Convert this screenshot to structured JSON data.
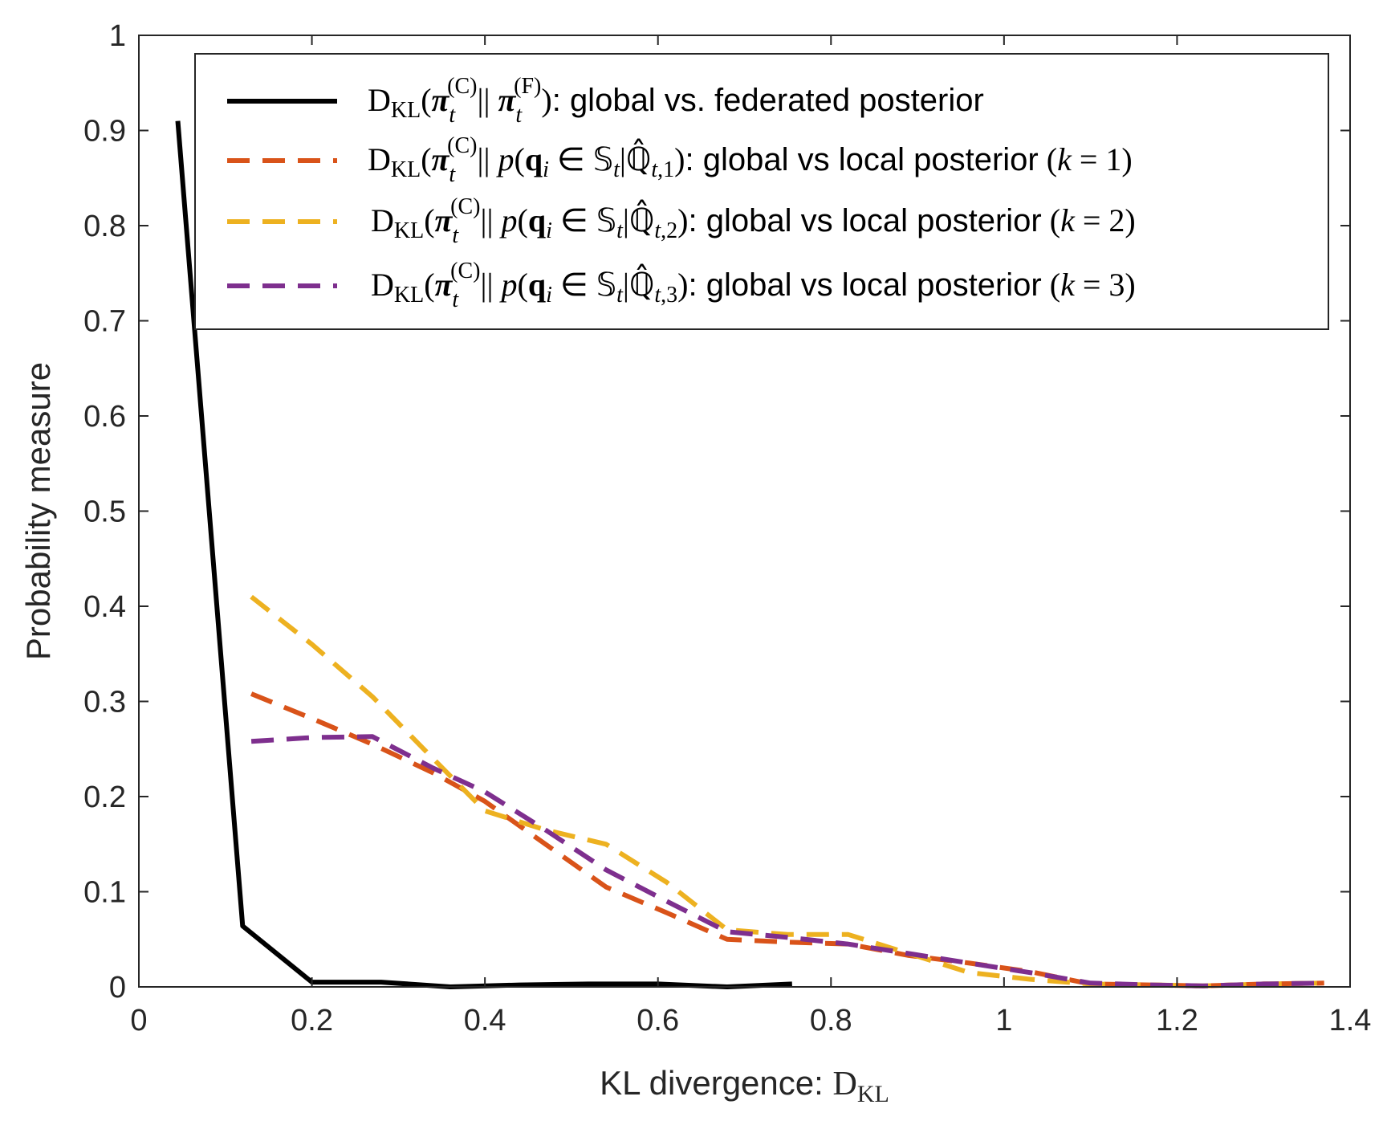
{
  "chart_data": {
    "type": "line",
    "xlabel": "KL divergence: D_KL",
    "xlabel_parts": {
      "text": "KL divergence: ",
      "d": "D",
      "sub": "KL"
    },
    "ylabel": "Probability measure",
    "xlim": [
      0,
      1.4
    ],
    "ylim": [
      0,
      1
    ],
    "xticks": [
      "0",
      "0.2",
      "0.4",
      "0.6",
      "0.8",
      "1",
      "1.2",
      "1.4"
    ],
    "yticks": [
      "0",
      "0.1",
      "0.2",
      "0.3",
      "0.4",
      "0.5",
      "0.6",
      "0.7",
      "0.8",
      "0.9",
      "1"
    ],
    "grid": false,
    "legend_position": "top-right",
    "series": [
      {
        "name": "D_KL(π_t^(C) || π_t^(F)): global vs. federated posterior",
        "legend": {
          "suffix": "global vs. federated posterior"
        },
        "color": "#000000",
        "style": "solid",
        "x": [
          0.045,
          0.12,
          0.2,
          0.28,
          0.36,
          0.44,
          0.52,
          0.6,
          0.68,
          0.755
        ],
        "y": [
          0.91,
          0.064,
          0.005,
          0.005,
          0.0,
          0.002,
          0.003,
          0.003,
          0.0,
          0.003
        ]
      },
      {
        "name": "D_KL(π_t^(C) || p(q_i ∈ S_t | Q̂_t,1)): global vs local posterior (k = 1)",
        "legend": {
          "suffix": "global vs local posterior",
          "k": "1"
        },
        "color": "#D95319",
        "style": "dashed",
        "x": [
          0.13,
          0.2,
          0.27,
          0.34,
          0.4,
          0.47,
          0.54,
          0.61,
          0.68,
          0.75,
          0.82,
          0.89,
          0.96,
          1.03,
          1.1,
          1.17,
          1.23,
          1.3,
          1.37
        ],
        "y": [
          0.308,
          0.282,
          0.255,
          0.225,
          0.195,
          0.15,
          0.105,
          0.078,
          0.05,
          0.047,
          0.045,
          0.033,
          0.025,
          0.016,
          0.003,
          0.002,
          0.001,
          0.003,
          0.004
        ]
      },
      {
        "name": "D_KL(π_t^(C) || p(q_i ∈ S_t | Q̂_t,2)): global vs local posterior (k = 2)",
        "legend": {
          "suffix": "global vs local posterior",
          "k": "2"
        },
        "color": "#EDB120",
        "style": "dashed",
        "x": [
          0.13,
          0.2,
          0.27,
          0.34,
          0.4,
          0.47,
          0.54,
          0.61,
          0.68,
          0.75,
          0.82,
          0.89,
          0.96,
          1.03,
          1.1,
          1.17,
          1.23,
          1.3,
          1.37
        ],
        "y": [
          0.41,
          0.36,
          0.305,
          0.24,
          0.185,
          0.165,
          0.15,
          0.11,
          0.06,
          0.055,
          0.055,
          0.035,
          0.015,
          0.008,
          0.003,
          0.002,
          0.001,
          0.003,
          0.004
        ]
      },
      {
        "name": "D_KL(π_t^(C) || p(q_i ∈ S_t | Q̂_t,3)): global vs local posterior (k = 3)",
        "legend": {
          "suffix": "global vs local posterior",
          "k": "3"
        },
        "color": "#7E2F8E",
        "style": "dashed",
        "x": [
          0.13,
          0.2,
          0.27,
          0.34,
          0.4,
          0.47,
          0.54,
          0.61,
          0.68,
          0.75,
          0.82,
          0.89,
          0.96,
          1.03,
          1.1,
          1.17,
          1.23,
          1.3,
          1.37
        ],
        "y": [
          0.258,
          0.262,
          0.263,
          0.23,
          0.205,
          0.165,
          0.123,
          0.09,
          0.058,
          0.052,
          0.045,
          0.035,
          0.025,
          0.015,
          0.004,
          0.002,
          0.001,
          0.003,
          0.004
        ]
      }
    ]
  }
}
